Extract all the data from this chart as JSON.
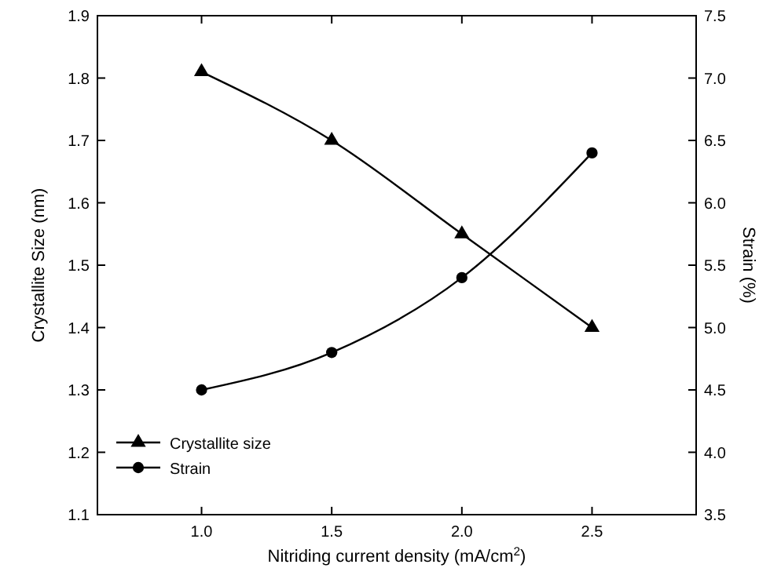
{
  "chart_data": {
    "type": "line",
    "xlabel": "Nitriding current density (mA/cm$^{2}$)",
    "ylabel": "Crystallite Size (nm)",
    "y2label": "Strain (%)",
    "x": [
      1.0,
      1.5,
      2.0,
      2.5
    ],
    "xlim": [
      0.6,
      2.9
    ],
    "xticks": [
      {
        "value": 1.0,
        "label": "1.0"
      },
      {
        "value": 1.5,
        "label": "1.5"
      },
      {
        "value": 2.0,
        "label": "2.0"
      },
      {
        "value": 2.5,
        "label": "2.5"
      }
    ],
    "ylim": [
      1.1,
      1.9
    ],
    "yticks": [
      {
        "value": 1.1,
        "label": "1.1"
      },
      {
        "value": 1.2,
        "label": "1.2"
      },
      {
        "value": 1.3,
        "label": "1.3"
      },
      {
        "value": 1.4,
        "label": "1.4"
      },
      {
        "value": 1.5,
        "label": "1.5"
      },
      {
        "value": 1.6,
        "label": "1.6"
      },
      {
        "value": 1.7,
        "label": "1.7"
      },
      {
        "value": 1.8,
        "label": "1.8"
      },
      {
        "value": 1.9,
        "label": "1.9"
      }
    ],
    "y2lim": [
      3.5,
      7.5
    ],
    "y2ticks": [
      {
        "value": 3.5,
        "label": "3.5"
      },
      {
        "value": 4.0,
        "label": "4.0"
      },
      {
        "value": 4.5,
        "label": "4.5"
      },
      {
        "value": 5.0,
        "label": "5.0"
      },
      {
        "value": 5.5,
        "label": "5.5"
      },
      {
        "value": 6.0,
        "label": "6.0"
      },
      {
        "value": 6.5,
        "label": "6.5"
      },
      {
        "value": 7.0,
        "label": "7.0"
      },
      {
        "value": 7.5,
        "label": "7.5"
      }
    ],
    "legend": "bottom left",
    "grid": false,
    "line_style": "solid",
    "series": [
      {
        "name": "Crystallite size",
        "color": "#000000",
        "marker": "triangle",
        "values": [
          1.81,
          1.7,
          1.55,
          1.4
        ]
      },
      {
        "name": "Strain",
        "color": "#000000",
        "marker": "circle",
        "axis": "y2",
        "values": [
          4.5,
          4.8,
          5.4,
          6.4
        ]
      }
    ]
  }
}
